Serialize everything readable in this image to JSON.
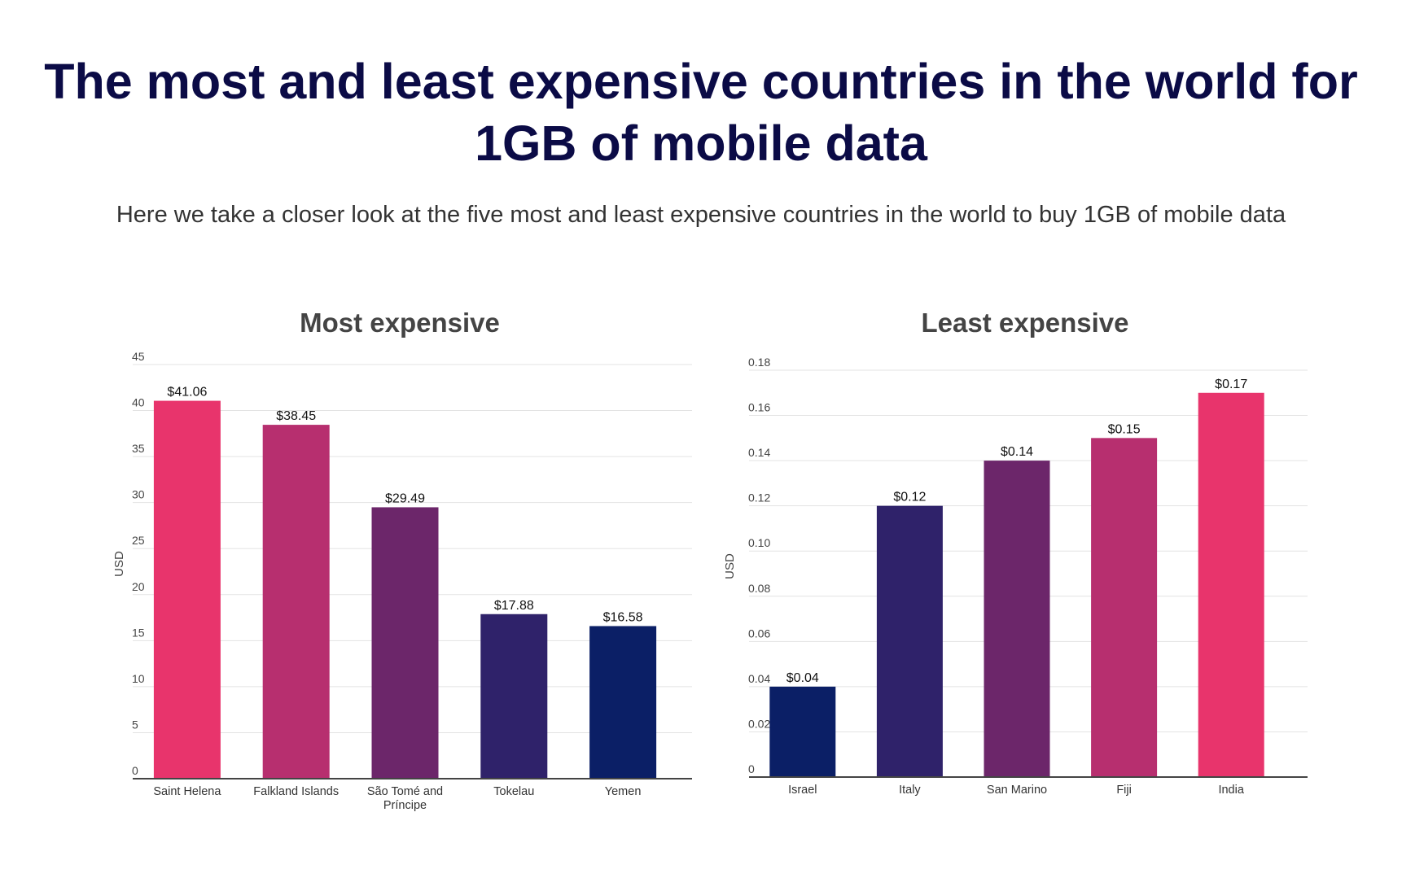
{
  "header": {
    "title": "The most and least expensive countries in the world for 1GB of mobile data",
    "subtitle": "Here we take a closer look at the five most and least expensive countries in the world to buy 1GB of mobile data"
  },
  "chart_data": [
    {
      "type": "bar",
      "title": "Most expensive",
      "xlabel": "",
      "ylabel": "USD",
      "ylim": [
        0,
        45
      ],
      "yticks": [
        0,
        5,
        10,
        15,
        20,
        25,
        30,
        35,
        40,
        45
      ],
      "ytick_labels": [
        "0",
        "5",
        "10",
        "15",
        "20",
        "25",
        "30",
        "35",
        "40",
        "45"
      ],
      "grid": true,
      "categories": [
        "Saint Helena",
        "Falkland Islands",
        "São Tomé and Príncipe",
        "Tokelau",
        "Yemen"
      ],
      "category_lines": [
        [
          "Saint Helena"
        ],
        [
          "Falkland Islands"
        ],
        [
          "São Tomé and",
          "Príncipe"
        ],
        [
          "Tokelau"
        ],
        [
          "Yemen"
        ]
      ],
      "values": [
        41.06,
        38.45,
        29.49,
        17.88,
        16.58
      ],
      "data_labels": [
        "$41.06",
        "$38.45",
        "$29.49",
        "$17.88",
        "$16.58"
      ],
      "colors": [
        "#e8346c",
        "#b72f6f",
        "#6c266a",
        "#2f226a",
        "#0b1f66"
      ]
    },
    {
      "type": "bar",
      "title": "Least expensive",
      "xlabel": "",
      "ylabel": "USD",
      "ylim": [
        0,
        0.18
      ],
      "yticks": [
        0,
        0.02,
        0.04,
        0.06,
        0.08,
        0.1,
        0.12,
        0.14,
        0.16,
        0.18
      ],
      "ytick_labels": [
        "0",
        "0.02",
        "0.04",
        "0.06",
        "0.08",
        "0.10",
        "0.12",
        "0.14",
        "0.16",
        "0.18"
      ],
      "grid": true,
      "categories": [
        "Israel",
        "Italy",
        "San Marino",
        "Fiji",
        "India"
      ],
      "category_lines": [
        [
          "Israel"
        ],
        [
          "Italy"
        ],
        [
          "San Marino"
        ],
        [
          "Fiji"
        ],
        [
          "India"
        ]
      ],
      "values": [
        0.04,
        0.12,
        0.14,
        0.15,
        0.17
      ],
      "data_labels": [
        "$0.04",
        "$0.12",
        "$0.14",
        "$0.15",
        "$0.17"
      ],
      "colors": [
        "#0b1f66",
        "#2f226a",
        "#6c266a",
        "#b72f6f",
        "#e8346c"
      ]
    }
  ]
}
